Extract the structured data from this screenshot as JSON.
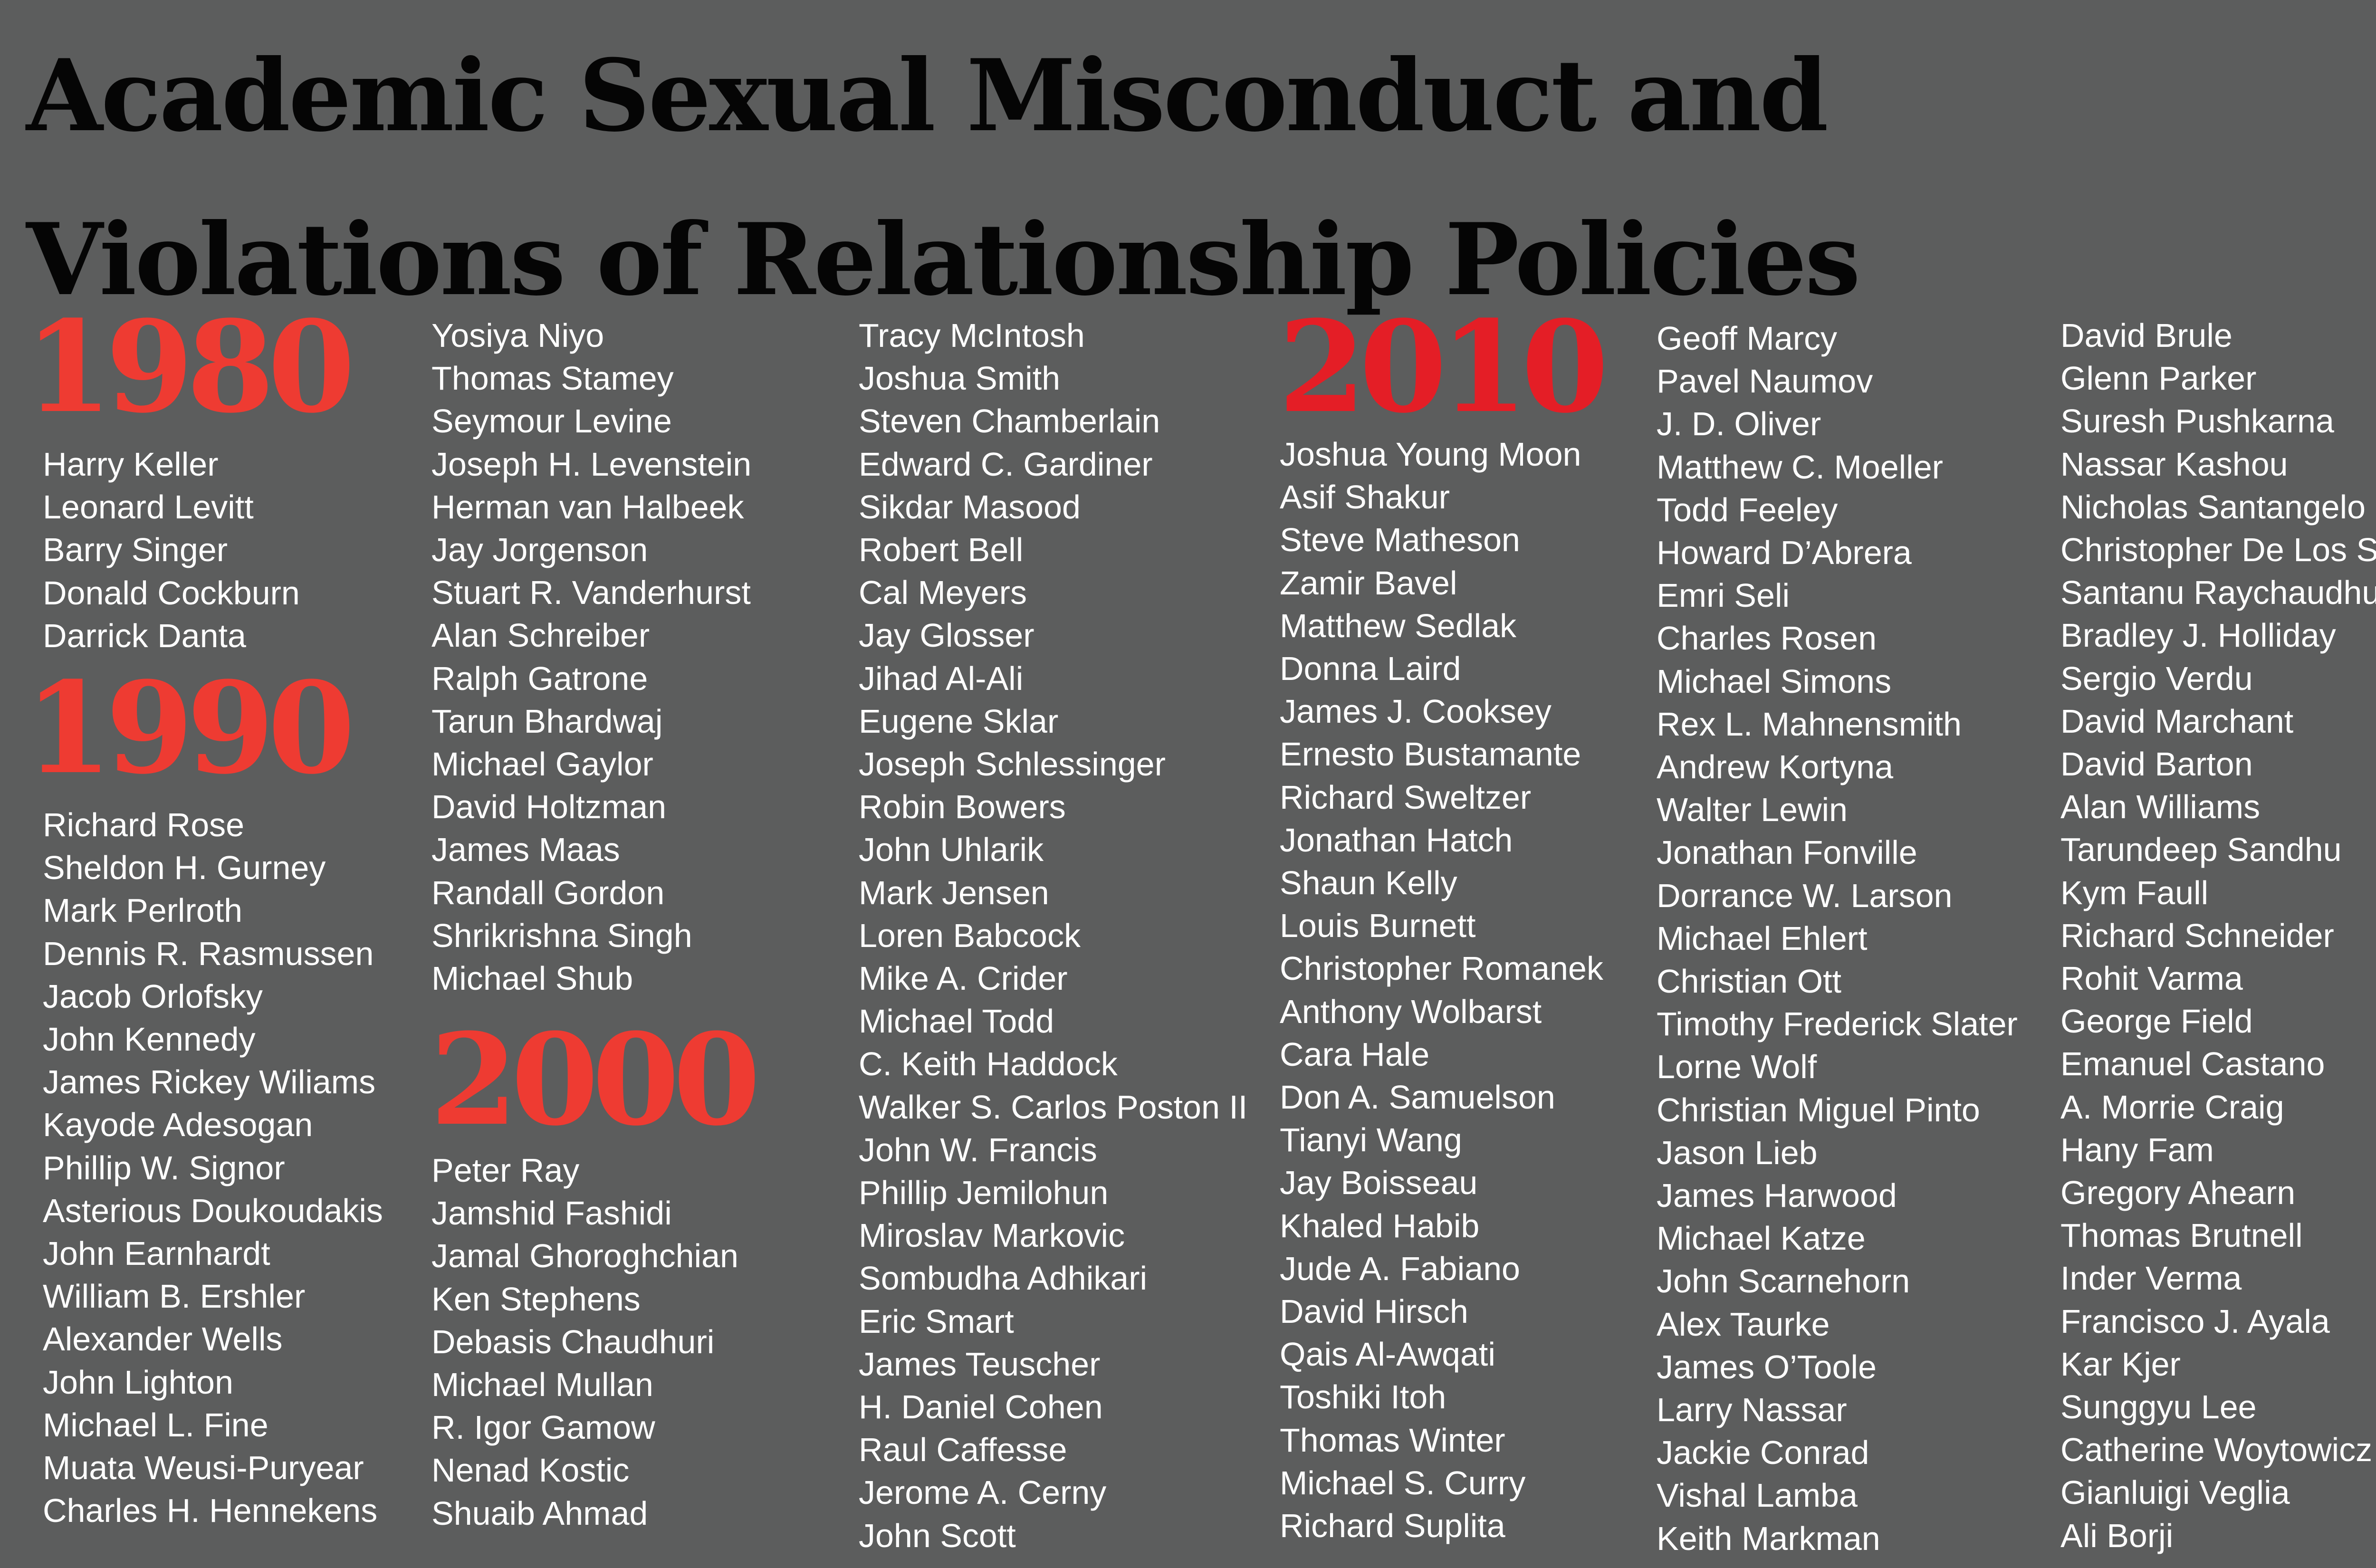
{
  "title": {
    "line1": "Academic Sexual Misconduct and",
    "line2": "Violations of Relationship Policies"
  },
  "colors": {
    "background": "#5c5d5d",
    "title": "#050505",
    "year": "#ee3b32",
    "year_2010": "#e41e26",
    "names": "#ffffff"
  },
  "decades": {
    "y1980": {
      "label": "1980",
      "names": [
        "Harry Keller",
        "Leonard Levitt",
        "Barry Singer",
        "Donald Cockburn",
        "Darrick Danta"
      ]
    },
    "y1990": {
      "label": "1990",
      "names": [
        "Richard Rose",
        "Sheldon H. Gurney",
        "Mark Perlroth",
        "Dennis R. Rasmussen",
        "Jacob Orlofsky",
        "John Kennedy",
        "James Rickey Wiliams",
        "Kayode Adesogan",
        "Phillip W. Signor",
        "Asterious Doukoudakis",
        "John Earnhardt",
        "William B. Ershler",
        "Alexander Wells",
        "John Lighton",
        "Michael L. Fine",
        "Muata Weusi-Puryear",
        "Charles H. Hennekens",
        "Yosiya Niyo",
        "Thomas Stamey",
        "Seymour Levine",
        "Joseph H. Levenstein",
        "Herman van Halbeek",
        "Jay Jorgenson",
        "Stuart R. Vanderhurst",
        "Alan Schreiber",
        "Ralph Gatrone",
        "Tarun Bhardwaj",
        "Michael Gaylor",
        "David Holtzman",
        "James Maas",
        "Randall Gordon",
        "Shrikrishna Singh",
        "Michael Shub"
      ]
    },
    "y2000": {
      "label": "2000",
      "names": [
        "Peter Ray",
        "Jamshid Fashidi",
        "Jamal Ghoroghchian",
        "Ken Stephens",
        "Debasis Chaudhuri",
        "Michael Mullan",
        "R. Igor Gamow",
        "Nenad Kostic",
        "Shuaib Ahmad",
        "Tracy McIntosh",
        "Joshua Smith",
        "Steven Chamberlain",
        "Edward C. Gardiner",
        "Sikdar Masood",
        "Robert Bell",
        "Cal Meyers",
        "Jay Glosser",
        "Jihad Al-Ali",
        "Eugene Sklar",
        "Joseph Schlessinger",
        "Robin Bowers",
        "John Uhlarik",
        "Mark Jensen",
        "Loren Babcock",
        "Mike A. Crider",
        "Michael Todd",
        "C. Keith Haddock",
        "Walker S. Carlos Poston II",
        "John W. Francis",
        "Phillip Jemilohun",
        "Miroslav Markovic",
        "Sombudha Adhikari",
        "Eric Smart",
        "James Teuscher",
        "H. Daniel Cohen",
        "Raul Caffesse",
        "Jerome A. Cerny",
        "John Scott"
      ]
    },
    "y2010": {
      "label": "2010",
      "names": [
        "Joshua Young Moon",
        "Asif Shakur",
        "Steve Matheson",
        "Zamir Bavel",
        "Matthew Sedlak",
        "Donna Laird",
        "James J. Cooksey",
        "Ernesto Bustamante",
        "Richard Sweltzer",
        "Jonathan Hatch",
        "Shaun Kelly",
        "Louis Burnett",
        "Christopher Romanek",
        "Anthony Wolbarst",
        "Cara Hale",
        "Don A. Samuelson",
        "Tianyi Wang",
        "Jay Boisseau",
        "Khaled Habib",
        "Jude A. Fabiano",
        "David Hirsch",
        "Qais Al-Awqati",
        "Toshiki Itoh",
        "Thomas Winter",
        "Michael S. Curry",
        "Richard Suplita",
        "Geoff Marcy",
        "Pavel Naumov",
        "J. D. Oliver",
        "Matthew C. Moeller",
        "Todd Feeley",
        "Howard D’Abrera",
        "Emri Seli",
        "Charles Rosen",
        "Michael Simons",
        "Rex L. Mahnensmith",
        "Andrew Kortyna",
        "Walter Lewin",
        "Jonathan Fonville",
        "Dorrance W. Larson",
        "Michael Ehlert",
        "Christian Ott",
        "Timothy Frederick Slater",
        "Lorne Wolf",
        "Christian Miguel Pinto",
        "Jason Lieb",
        "James Harwood",
        "Michael Katze",
        "John Scarnehorn",
        "Alex Taurke",
        "James O’Toole",
        "Larry Nassar",
        "Jackie Conrad",
        "Vishal Lamba",
        "Keith Markman",
        "David Brule",
        "Glenn Parker",
        "Suresh Pushkarna",
        "Nassar Kashou",
        "Nicholas Santangelo",
        "Christopher De Los Santos",
        "Santanu Raychaudhuri",
        "Bradley J. Holliday",
        "Sergio Verdu",
        "David Marchant",
        "David Barton",
        "Alan Williams",
        "Tarundeep Sandhu",
        "Kym Faull",
        "Richard Schneider",
        "Rohit Varma",
        "George Field",
        "Emanuel Castano",
        "A. Morrie Craig",
        "Hany Fam",
        "Gregory Ahearn",
        "Thomas Brutnell",
        "Inder Verma",
        "Francisco J. Ayala",
        "Kar Kjer",
        "Sunggyu Lee",
        "Catherine Woytowicz",
        "Gianluigi Veglia",
        "Ali Borji"
      ]
    }
  }
}
